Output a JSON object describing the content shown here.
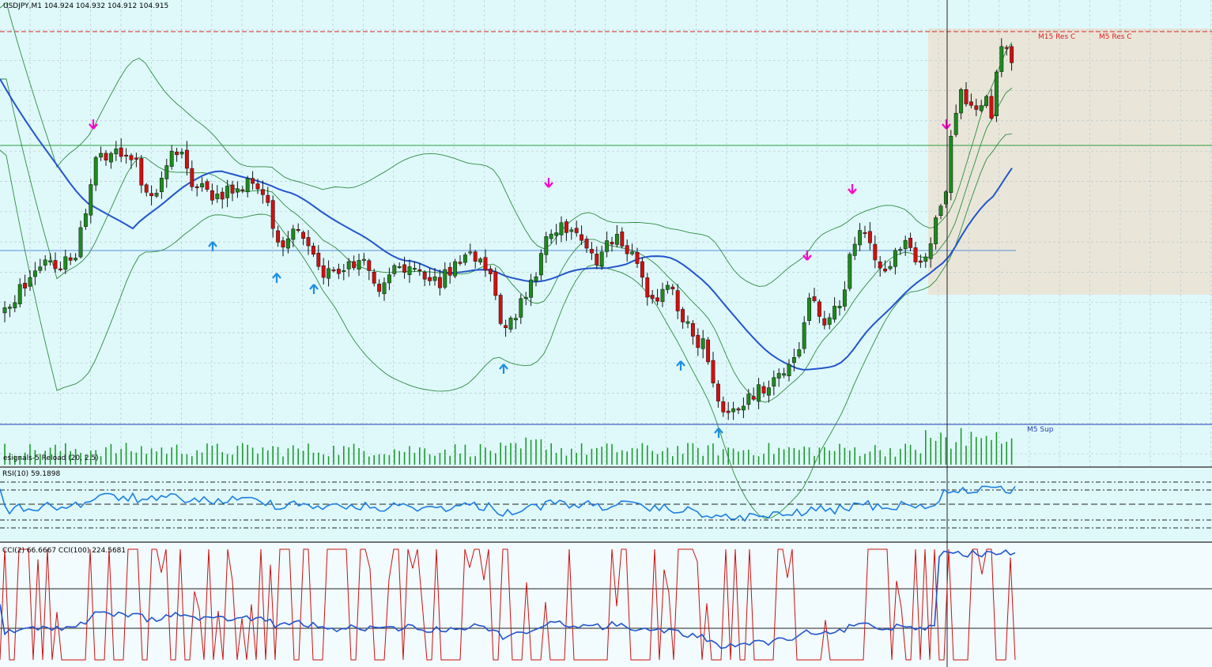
{
  "header": {
    "symbol_line": "USDJPY,M1  104.924 104.932 104.912 104.915"
  },
  "levels": {
    "resistance_label_1": "M15 Res C",
    "resistance_label_2": "M5 Res C",
    "support_label": "M5 Sup"
  },
  "indicators": {
    "signals_label": "esignals-5 Reload (20, 2.5)",
    "rsi_label": "RSI(10) 59.1898",
    "cci_label": "CCI(2) 66.6667  CCI(100) 224.5681"
  },
  "colors": {
    "background": "#dff9fb",
    "bull": "#1e8a1e",
    "bear": "#d01010",
    "ma": "#2255cc",
    "band": "#2e8b3e",
    "buy_arrow": "#1e8fe0",
    "sell_arrow": "#ff00cc",
    "resistance": "#e02020",
    "support": "#1f3fb0",
    "cci_fast": "#cc1010",
    "rsi_line": "#1e7fe0"
  },
  "chart_data": {
    "type": "candlestick",
    "symbol": "USDJPY",
    "timeframe": "M1",
    "last_ohlc": {
      "open": 104.924,
      "high": 104.932,
      "low": 104.912,
      "close": 104.915
    },
    "rsi_period": 10,
    "rsi_value": 59.1898,
    "cci_fast_period": 2,
    "cci_fast_value": 66.6667,
    "cci_slow_period": 100,
    "cci_slow_value": 224.5681
  }
}
